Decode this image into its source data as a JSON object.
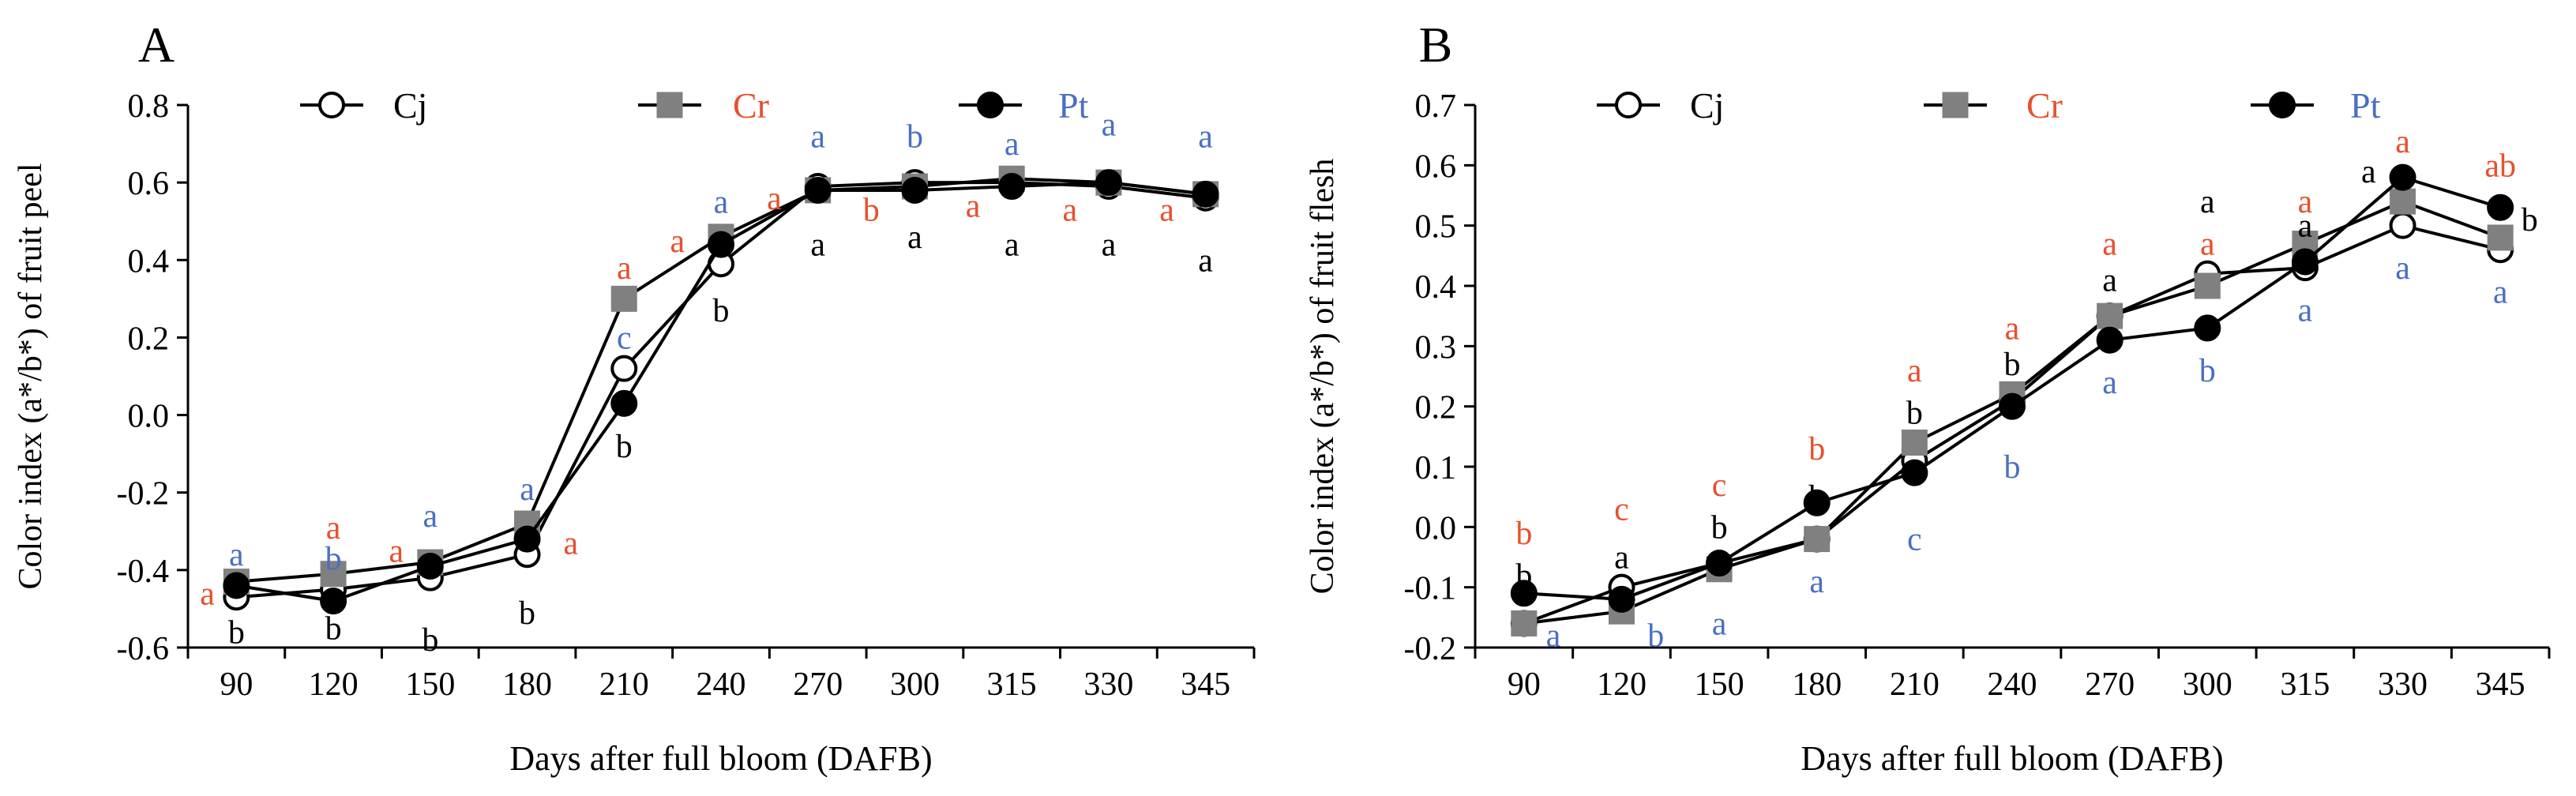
{
  "colors": {
    "black": "#000000",
    "cr": "#e8502d",
    "pt": "#4a6fc4",
    "grey": "#808080"
  },
  "chart_data": [
    {
      "type": "line",
      "panel": "A",
      "ylabel": "Color index (a*/b*) of fruit peel",
      "xlabel": "Days after full bloom (DAFB)",
      "categories": [
        "90",
        "120",
        "150",
        "180",
        "210",
        "240",
        "270",
        "300",
        "315",
        "330",
        "345"
      ],
      "ylim": [
        -0.6,
        0.8
      ],
      "yticks": [
        "0.8",
        "0.6",
        "0.4",
        "0.2",
        "0.0",
        "-0.2",
        "-0.4",
        "-0.6"
      ],
      "tick_values": [
        0.8,
        0.6,
        0.4,
        0.2,
        0.0,
        -0.2,
        -0.4,
        -0.6
      ],
      "series": [
        {
          "name": "Cj",
          "marker": "open",
          "values": [
            -0.47,
            -0.45,
            -0.42,
            -0.36,
            0.12,
            0.39,
            0.59,
            0.6,
            0.6,
            0.59,
            0.56
          ]
        },
        {
          "name": "Cr",
          "marker": "grey",
          "values": [
            -0.43,
            -0.41,
            -0.38,
            -0.28,
            0.3,
            0.46,
            0.58,
            0.59,
            0.61,
            0.6,
            0.57
          ]
        },
        {
          "name": "Pt",
          "marker": "filled",
          "values": [
            -0.44,
            -0.48,
            -0.39,
            -0.32,
            0.03,
            0.44,
            0.58,
            0.58,
            0.59,
            0.6,
            0.57
          ]
        }
      ],
      "annotations": [
        {
          "text": "a",
          "color": "pt",
          "x": 0,
          "y": -0.36
        },
        {
          "text": "a",
          "color": "cr",
          "x": 0,
          "y": -0.46,
          "dx": -0.3
        },
        {
          "text": "b",
          "color": "black",
          "x": 0,
          "y": -0.56
        },
        {
          "text": "a",
          "color": "cr",
          "x": 1,
          "y": -0.29
        },
        {
          "text": "b",
          "color": "pt",
          "x": 1,
          "y": -0.37
        },
        {
          "text": "b",
          "color": "black",
          "x": 1,
          "y": -0.55
        },
        {
          "text": "a",
          "color": "pt",
          "x": 2,
          "y": -0.26
        },
        {
          "text": "a",
          "color": "cr",
          "x": 2,
          "y": -0.35,
          "dx": -0.35
        },
        {
          "text": "b",
          "color": "black",
          "x": 2,
          "y": -0.58
        },
        {
          "text": "a",
          "color": "pt",
          "x": 3,
          "y": -0.19
        },
        {
          "text": "a",
          "color": "cr",
          "x": 3,
          "y": -0.33,
          "dx": 0.45
        },
        {
          "text": "b",
          "color": "black",
          "x": 3,
          "y": -0.51
        },
        {
          "text": "a",
          "color": "cr",
          "x": 4,
          "y": 0.38
        },
        {
          "text": "c",
          "color": "pt",
          "x": 4,
          "y": 0.2
        },
        {
          "text": "b",
          "color": "black",
          "x": 4,
          "y": -0.08
        },
        {
          "text": "a",
          "color": "cr",
          "x": 4,
          "y": 0.45,
          "dx": 0.55
        },
        {
          "text": "a",
          "color": "pt",
          "x": 5,
          "y": 0.55
        },
        {
          "text": "b",
          "color": "black",
          "x": 5,
          "y": 0.27
        },
        {
          "text": "a",
          "color": "cr",
          "x": 5,
          "y": 0.56,
          "dx": 0.55
        },
        {
          "text": "a",
          "color": "pt",
          "x": 6,
          "y": 0.72
        },
        {
          "text": "a",
          "color": "black",
          "x": 6,
          "y": 0.44
        },
        {
          "text": "b",
          "color": "pt",
          "x": 7,
          "y": 0.72
        },
        {
          "text": "b",
          "color": "cr",
          "x": 7,
          "y": 0.53,
          "dx": -0.45
        },
        {
          "text": "a",
          "color": "black",
          "x": 7,
          "y": 0.46
        },
        {
          "text": "a",
          "color": "pt",
          "x": 8,
          "y": 0.7
        },
        {
          "text": "a",
          "color": "cr",
          "x": 8,
          "y": 0.54,
          "dx": -0.4
        },
        {
          "text": "a",
          "color": "black",
          "x": 8,
          "y": 0.44
        },
        {
          "text": "a",
          "color": "pt",
          "x": 9,
          "y": 0.75
        },
        {
          "text": "a",
          "color": "cr",
          "x": 9,
          "y": 0.53,
          "dx": -0.4
        },
        {
          "text": "a",
          "color": "black",
          "x": 9,
          "y": 0.44
        },
        {
          "text": "a",
          "color": "pt",
          "x": 10,
          "y": 0.72
        },
        {
          "text": "a",
          "color": "cr",
          "x": 10,
          "y": 0.53,
          "dx": -0.4
        },
        {
          "text": "a",
          "color": "black",
          "x": 10,
          "y": 0.4
        }
      ]
    },
    {
      "type": "line",
      "panel": "B",
      "ylabel": "Color index (a*/b*) of fruit flesh",
      "xlabel": "Days after full bloom (DAFB)",
      "categories": [
        "90",
        "120",
        "150",
        "180",
        "210",
        "240",
        "270",
        "300",
        "315",
        "330",
        "345"
      ],
      "ylim": [
        -0.2,
        0.7
      ],
      "yticks": [
        "0.7",
        "0.6",
        "0.5",
        "0.4",
        "0.3",
        "0.2",
        "0.1",
        "0.0",
        "-0.1",
        "-0.2"
      ],
      "tick_values": [
        0.7,
        0.6,
        0.5,
        0.4,
        0.3,
        0.2,
        0.1,
        0.0,
        -0.1,
        -0.2
      ],
      "series": [
        {
          "name": "Cj",
          "marker": "open",
          "values": [
            -0.16,
            -0.1,
            -0.06,
            -0.02,
            0.11,
            0.21,
            0.35,
            0.42,
            0.43,
            0.5,
            0.46
          ]
        },
        {
          "name": "Cr",
          "marker": "grey",
          "values": [
            -0.16,
            -0.14,
            -0.07,
            -0.02,
            0.14,
            0.22,
            0.35,
            0.4,
            0.47,
            0.54,
            0.48
          ]
        },
        {
          "name": "Pt",
          "marker": "filled",
          "values": [
            -0.11,
            -0.12,
            -0.06,
            0.04,
            0.09,
            0.2,
            0.31,
            0.33,
            0.44,
            0.58,
            0.53
          ]
        }
      ],
      "annotations": [
        {
          "text": "b",
          "color": "cr",
          "x": 0,
          "y": -0.01
        },
        {
          "text": "b",
          "color": "black",
          "x": 0,
          "y": -0.08
        },
        {
          "text": "a",
          "color": "pt",
          "x": 0,
          "y": -0.18,
          "dx": 0.3
        },
        {
          "text": "c",
          "color": "cr",
          "x": 1,
          "y": 0.03
        },
        {
          "text": "a",
          "color": "black",
          "x": 1,
          "y": -0.05
        },
        {
          "text": "b",
          "color": "pt",
          "x": 1,
          "y": -0.18,
          "dx": 0.35
        },
        {
          "text": "c",
          "color": "cr",
          "x": 2,
          "y": 0.07
        },
        {
          "text": "b",
          "color": "black",
          "x": 2,
          "y": 0.0
        },
        {
          "text": "a",
          "color": "pt",
          "x": 2,
          "y": -0.16
        },
        {
          "text": "b",
          "color": "cr",
          "x": 3,
          "y": 0.13
        },
        {
          "text": "b",
          "color": "black",
          "x": 3,
          "y": 0.05
        },
        {
          "text": "a",
          "color": "pt",
          "x": 3,
          "y": -0.09
        },
        {
          "text": "a",
          "color": "cr",
          "x": 4,
          "y": 0.26
        },
        {
          "text": "b",
          "color": "black",
          "x": 4,
          "y": 0.19
        },
        {
          "text": "c",
          "color": "pt",
          "x": 4,
          "y": -0.02
        },
        {
          "text": "a",
          "color": "cr",
          "x": 5,
          "y": 0.33
        },
        {
          "text": "b",
          "color": "black",
          "x": 5,
          "y": 0.27
        },
        {
          "text": "b",
          "color": "pt",
          "x": 5,
          "y": 0.1
        },
        {
          "text": "a",
          "color": "cr",
          "x": 6,
          "y": 0.47
        },
        {
          "text": "a",
          "color": "black",
          "x": 6,
          "y": 0.41
        },
        {
          "text": "a",
          "color": "pt",
          "x": 6,
          "y": 0.24
        },
        {
          "text": "a",
          "color": "black",
          "x": 7,
          "y": 0.54
        },
        {
          "text": "a",
          "color": "cr",
          "x": 7,
          "y": 0.47
        },
        {
          "text": "b",
          "color": "pt",
          "x": 7,
          "y": 0.26
        },
        {
          "text": "a",
          "color": "cr",
          "x": 8,
          "y": 0.54
        },
        {
          "text": "a",
          "color": "black",
          "x": 8,
          "y": 0.5
        },
        {
          "text": "a",
          "color": "pt",
          "x": 8,
          "y": 0.36
        },
        {
          "text": "a",
          "color": "cr",
          "x": 9,
          "y": 0.64
        },
        {
          "text": "a",
          "color": "black",
          "x": 9,
          "y": 0.59,
          "dx": -0.35
        },
        {
          "text": "a",
          "color": "pt",
          "x": 9,
          "y": 0.43
        },
        {
          "text": "ab",
          "color": "cr",
          "x": 10,
          "y": 0.6
        },
        {
          "text": "b",
          "color": "black",
          "x": 10,
          "y": 0.51,
          "dx": 0.3
        },
        {
          "text": "a",
          "color": "pt",
          "x": 10,
          "y": 0.39
        }
      ]
    }
  ]
}
